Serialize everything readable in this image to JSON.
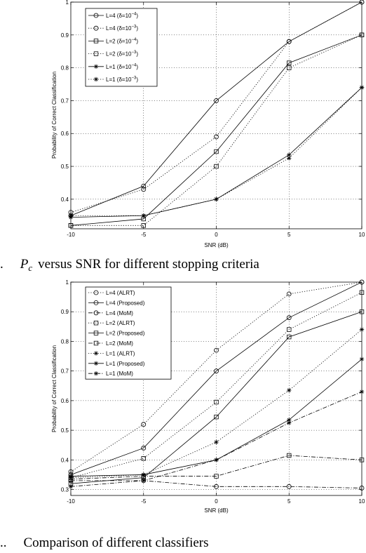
{
  "chart_data": [
    {
      "type": "line",
      "title": "",
      "xlabel": "SNR (dB)",
      "ylabel": "Probability of Correct Classification",
      "x": [
        -10,
        -5,
        0,
        5,
        10
      ],
      "xlim": [
        -10,
        10
      ],
      "ylim": [
        0.31,
        1.0
      ],
      "xticks": [
        -10,
        -5,
        0,
        5,
        10
      ],
      "yticks": [
        0.4,
        0.5,
        0.6,
        0.7,
        0.8,
        0.9,
        1
      ],
      "grid": true,
      "legend_position": "top-left",
      "caption_prefix": ".",
      "caption_symbol": "P",
      "caption_sub": "c",
      "caption_text": "versus SNR for different stopping criteria",
      "series": [
        {
          "name": "L=4 (δ=10",
          "exp": "−4",
          "style": "solid",
          "marker": "circle",
          "values": [
            0.35,
            0.44,
            0.7,
            0.88,
            1.0
          ]
        },
        {
          "name": "L=4 (δ=10",
          "exp": "−3",
          "style": "dotted",
          "marker": "circle",
          "values": [
            0.36,
            0.43,
            0.59,
            0.88,
            1.0
          ]
        },
        {
          "name": "L=2 (δ=10",
          "exp": "−4",
          "style": "solid",
          "marker": "square",
          "values": [
            0.32,
            0.34,
            0.545,
            0.815,
            0.9
          ]
        },
        {
          "name": "L=2 (δ=10",
          "exp": "−3",
          "style": "dotted",
          "marker": "square",
          "values": [
            0.32,
            0.32,
            0.5,
            0.8,
            0.9
          ]
        },
        {
          "name": "L=1 (δ=10",
          "exp": "−4",
          "style": "solid",
          "marker": "star",
          "values": [
            0.345,
            0.35,
            0.4,
            0.535,
            0.74
          ]
        },
        {
          "name": "L=1 (δ=10",
          "exp": "−3",
          "style": "dotted",
          "marker": "star",
          "values": [
            0.35,
            0.35,
            0.4,
            0.525,
            0.74
          ]
        }
      ]
    },
    {
      "type": "line",
      "title": "",
      "xlabel": "SNR (dB)",
      "ylabel": "Probability of Correct Classification",
      "x": [
        -10,
        -5,
        0,
        5,
        10
      ],
      "xlim": [
        -10,
        10
      ],
      "ylim": [
        0.28,
        1.0
      ],
      "xticks": [
        -10,
        -5,
        0,
        5,
        10
      ],
      "yticks": [
        0.3,
        0.4,
        0.5,
        0.6,
        0.7,
        0.8,
        0.9,
        1
      ],
      "grid": true,
      "legend_position": "top-left",
      "caption_prefix": "..",
      "caption_text": "Comparison of different classifiers",
      "series": [
        {
          "name": "L=4 (ALRT)",
          "style": "dotted",
          "marker": "circle",
          "values": [
            0.36,
            0.52,
            0.77,
            0.96,
            1.0
          ]
        },
        {
          "name": "L=4 (Proposed)",
          "style": "solid",
          "marker": "circle",
          "values": [
            0.35,
            0.44,
            0.7,
            0.88,
            1.0
          ]
        },
        {
          "name": "L=4 (MoM)",
          "style": "dashdot",
          "marker": "circle",
          "values": [
            0.33,
            0.33,
            0.31,
            0.31,
            0.305
          ]
        },
        {
          "name": "L=2 (ALRT)",
          "style": "dotted",
          "marker": "square",
          "values": [
            0.34,
            0.405,
            0.595,
            0.84,
            0.965
          ]
        },
        {
          "name": "L=2 (Proposed)",
          "style": "solid",
          "marker": "square",
          "values": [
            0.32,
            0.34,
            0.545,
            0.815,
            0.9
          ]
        },
        {
          "name": "L=2 (MoM)",
          "style": "dashdot",
          "marker": "square",
          "values": [
            0.335,
            0.345,
            0.345,
            0.415,
            0.4
          ]
        },
        {
          "name": "L=1 (ALRT)",
          "style": "dotted",
          "marker": "star",
          "values": [
            0.34,
            0.35,
            0.46,
            0.635,
            0.84
          ]
        },
        {
          "name": "L=1 (Proposed)",
          "style": "solid",
          "marker": "star",
          "values": [
            0.345,
            0.35,
            0.4,
            0.535,
            0.74
          ]
        },
        {
          "name": "L=1 (MoM)",
          "style": "dashdot",
          "marker": "star",
          "values": [
            0.31,
            0.33,
            0.4,
            0.525,
            0.63
          ]
        }
      ]
    }
  ]
}
